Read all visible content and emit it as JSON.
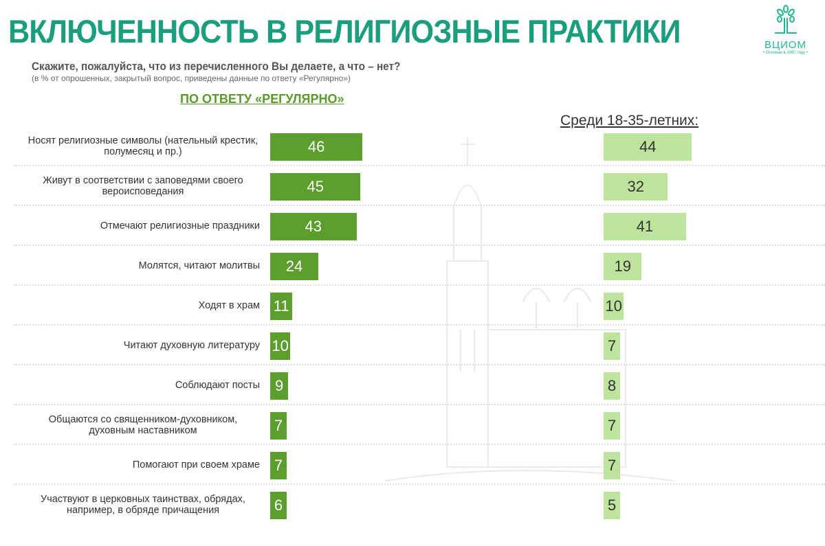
{
  "title": "ВКЛЮЧЕННОСТЬ В РЕЛИГИОЗНЫЕ ПРАКТИКИ",
  "question": "Скажите, пожалуйста, что из перечисленного Вы делаете, а что – нет?",
  "note": "(в % от опрошенных, закрытый вопрос, приведены данные по ответу «Регулярно»)",
  "logo": {
    "name": "ВЦИОМ",
    "since": "• Основан в 1987 году •"
  },
  "colors": {
    "title": "#1a9e7d",
    "main_bar": "#5c9e2e",
    "young_bar": "#bee39d"
  },
  "chart_data": {
    "type": "bar",
    "orientation": "horizontal",
    "subtitle": "ПО ОТВЕТУ «РЕГУЛЯРНО»",
    "categories": [
      "Носят религиозные символы (нательный крестик, полумесяц и пр.)",
      "Живут в соответствии с заповедями своего вероисповедания",
      "Отмечают религиозные праздники",
      "Молятся, читают молитвы",
      "Ходят в храм",
      "Читают духовную литературу",
      "Соблюдают посты",
      "Общаются со священником-духовником, духовным наставником",
      "Помогают при своем храме",
      "Участвуют в церковных таинствах, обрядах, например, в обряде причащения"
    ],
    "series": [
      {
        "values": [
          46,
          45,
          43,
          24,
          11,
          10,
          9,
          7,
          7,
          6
        ]
      },
      {
        "name": "Среди 18-35-летних:",
        "values": [
          44,
          32,
          41,
          19,
          10,
          7,
          8,
          7,
          7,
          5
        ]
      }
    ]
  }
}
